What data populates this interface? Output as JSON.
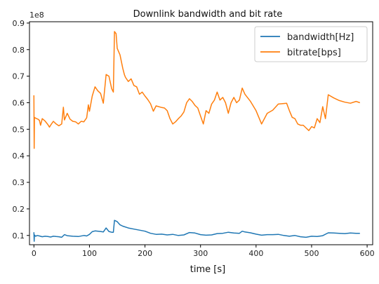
{
  "chart_data": {
    "type": "line",
    "title": "Downlink bandwidth and bit rate",
    "xlabel": "time [s]",
    "ylabel": "",
    "y_offset_text": "1e8",
    "xlim": [
      -8,
      610
    ],
    "ylim": [
      0.065,
      0.905
    ],
    "xticks": [
      0,
      100,
      200,
      300,
      400,
      500,
      600
    ],
    "xtick_labels": [
      "0",
      "100",
      "200",
      "300",
      "400",
      "500",
      "600"
    ],
    "yticks": [
      0.1,
      0.2,
      0.3,
      0.4,
      0.5,
      0.6,
      0.7,
      0.8,
      0.9
    ],
    "ytick_labels": [
      "0.1",
      "0.2",
      "0.3",
      "0.4",
      "0.5",
      "0.6",
      "0.7",
      "0.8",
      "0.9"
    ],
    "grid": false,
    "legend_position": "top-right",
    "series": [
      {
        "name": "bandwidth[Hz]",
        "color": "#1f77b4",
        "x": [
          0,
          0.5,
          1,
          3,
          6,
          10,
          15,
          20,
          25,
          30,
          35,
          40,
          45,
          50,
          55,
          60,
          70,
          80,
          90,
          95,
          100,
          105,
          110,
          120,
          125,
          130,
          135,
          140,
          143,
          145,
          150,
          155,
          160,
          170,
          180,
          190,
          200,
          210,
          220,
          230,
          240,
          250,
          260,
          270,
          280,
          290,
          300,
          310,
          320,
          330,
          340,
          350,
          360,
          370,
          375,
          380,
          390,
          400,
          410,
          420,
          430,
          440,
          450,
          460,
          470,
          480,
          490,
          500,
          510,
          520,
          530,
          540,
          550,
          560,
          570,
          580,
          587
        ],
        "y": [
          0.112,
          0.078,
          0.102,
          0.097,
          0.1,
          0.098,
          0.095,
          0.097,
          0.096,
          0.094,
          0.097,
          0.096,
          0.095,
          0.093,
          0.103,
          0.099,
          0.097,
          0.096,
          0.1,
          0.098,
          0.104,
          0.114,
          0.117,
          0.115,
          0.113,
          0.128,
          0.115,
          0.112,
          0.112,
          0.157,
          0.152,
          0.14,
          0.135,
          0.128,
          0.124,
          0.12,
          0.116,
          0.108,
          0.104,
          0.105,
          0.102,
          0.104,
          0.1,
          0.102,
          0.111,
          0.109,
          0.103,
          0.101,
          0.102,
          0.107,
          0.108,
          0.112,
          0.109,
          0.108,
          0.116,
          0.113,
          0.11,
          0.105,
          0.101,
          0.103,
          0.103,
          0.104,
          0.1,
          0.097,
          0.1,
          0.095,
          0.093,
          0.097,
          0.096,
          0.099,
          0.11,
          0.109,
          0.108,
          0.107,
          0.109,
          0.108,
          0.108
        ]
      },
      {
        "name": "bitrate[bps]",
        "color": "#ff7f0e",
        "x": [
          0,
          0.5,
          1,
          2,
          5,
          8,
          10,
          12,
          15,
          20,
          25,
          28,
          30,
          35,
          40,
          45,
          50,
          53,
          55,
          60,
          65,
          70,
          75,
          80,
          85,
          90,
          95,
          98,
          100,
          105,
          110,
          115,
          120,
          125,
          130,
          135,
          140,
          143,
          145,
          148,
          150,
          155,
          160,
          163,
          165,
          170,
          175,
          180,
          185,
          190,
          195,
          200,
          205,
          210,
          215,
          220,
          230,
          235,
          240,
          245,
          250,
          255,
          260,
          265,
          270,
          275,
          280,
          285,
          290,
          295,
          300,
          305,
          310,
          315,
          320,
          325,
          330,
          335,
          340,
          345,
          350,
          355,
          360,
          365,
          370,
          375,
          380,
          390,
          400,
          410,
          420,
          430,
          440,
          450,
          455,
          460,
          465,
          470,
          475,
          480,
          485,
          490,
          495,
          500,
          505,
          510,
          515,
          520,
          525,
          530,
          540,
          550,
          560,
          570,
          580,
          587
        ],
        "y": [
          0.628,
          0.428,
          0.545,
          0.543,
          0.54,
          0.537,
          0.533,
          0.515,
          0.54,
          0.531,
          0.518,
          0.508,
          0.515,
          0.53,
          0.52,
          0.513,
          0.52,
          0.583,
          0.535,
          0.56,
          0.538,
          0.53,
          0.528,
          0.52,
          0.53,
          0.528,
          0.543,
          0.592,
          0.568,
          0.625,
          0.66,
          0.645,
          0.635,
          0.598,
          0.706,
          0.7,
          0.653,
          0.64,
          0.868,
          0.86,
          0.805,
          0.78,
          0.73,
          0.705,
          0.695,
          0.68,
          0.69,
          0.665,
          0.66,
          0.632,
          0.64,
          0.625,
          0.612,
          0.596,
          0.568,
          0.588,
          0.582,
          0.58,
          0.57,
          0.54,
          0.52,
          0.528,
          0.54,
          0.55,
          0.565,
          0.6,
          0.615,
          0.605,
          0.59,
          0.58,
          0.55,
          0.52,
          0.57,
          0.56,
          0.595,
          0.61,
          0.64,
          0.61,
          0.62,
          0.6,
          0.56,
          0.6,
          0.62,
          0.6,
          0.61,
          0.655,
          0.632,
          0.605,
          0.57,
          0.52,
          0.56,
          0.572,
          0.595,
          0.597,
          0.598,
          0.57,
          0.545,
          0.54,
          0.52,
          0.515,
          0.515,
          0.505,
          0.495,
          0.51,
          0.505,
          0.54,
          0.525,
          0.585,
          0.54,
          0.63,
          0.618,
          0.608,
          0.602,
          0.598,
          0.605,
          0.6
        ]
      }
    ]
  }
}
